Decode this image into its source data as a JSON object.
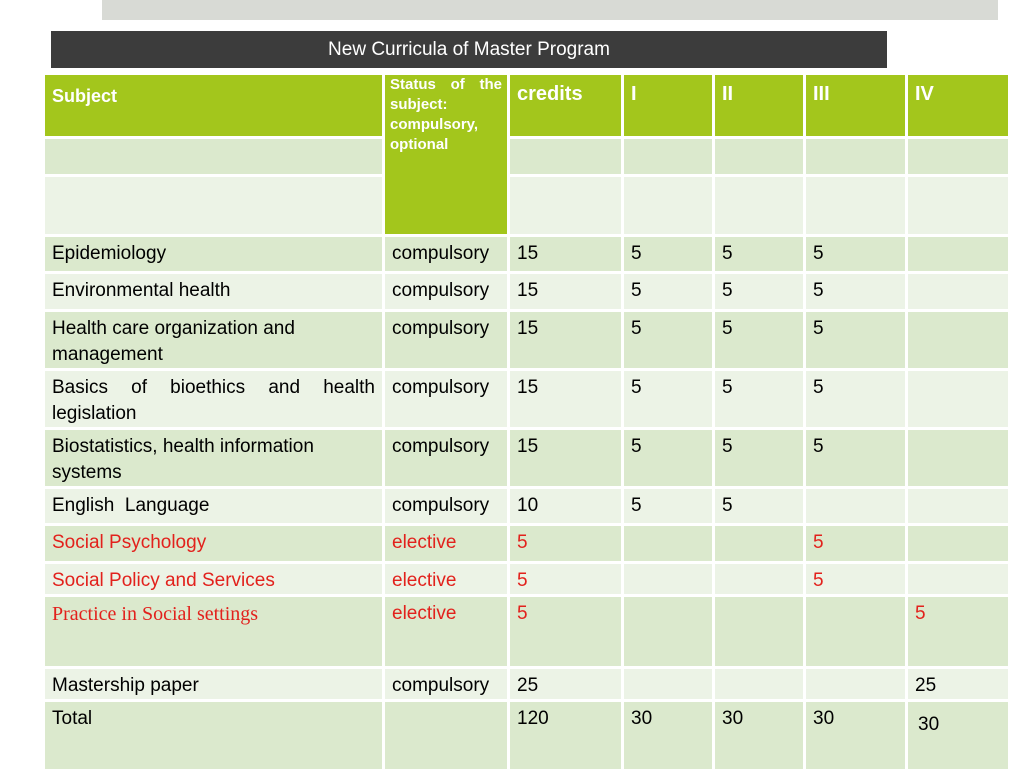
{
  "title": "New Curricula of Master Program",
  "columns": {
    "subject": "Subject",
    "status": "Status of the subject: compulsory, optional",
    "credits": "credits",
    "sem1": "I",
    "sem2": "II",
    "sem3": "III",
    "sem4": "IV"
  },
  "rows": [
    {
      "subject": "Epidemiology",
      "status": "compulsory",
      "credits": "15",
      "s1": "5",
      "s2": "5",
      "s3": "5",
      "s4": ""
    },
    {
      "subject": "Environmental health",
      "status": "compulsory",
      "credits": "15",
      "s1": "5",
      "s2": "5",
      "s3": "5",
      "s4": ""
    },
    {
      "subject": "Health care organization and management",
      "status": "compulsory",
      "credits": "15",
      "s1": "5",
      "s2": "5",
      "s3": "5",
      "s4": ""
    },
    {
      "subject": "Basics of bioethics and health legislation",
      "status": "compulsory",
      "credits": "15",
      "s1": "5",
      "s2": "5",
      "s3": "5",
      "s4": ""
    },
    {
      "subject": "Biostatistics, health information systems",
      "status": "compulsory",
      "credits": "15",
      "s1": "5",
      "s2": "5",
      "s3": "5",
      "s4": ""
    },
    {
      "subject": "English  Language",
      "status": "compulsory",
      "credits": "10",
      "s1": "5",
      "s2": "5",
      "s3": "",
      "s4": ""
    },
    {
      "subject": "Social Psychology",
      "status": "elective",
      "credits": "5",
      "s1": "",
      "s2": "",
      "s3": "5",
      "s4": ""
    },
    {
      "subject": "Social Policy and Services",
      "status": "elective",
      "credits": "5",
      "s1": "",
      "s2": "",
      "s3": "5",
      "s4": ""
    },
    {
      "subject": "Practice in Social settings",
      "status": "elective",
      "credits": "5",
      "s1": "",
      "s2": "",
      "s3": "",
      "s4": "5"
    },
    {
      "subject": "Mastership paper",
      "status": "compulsory",
      "credits": "25",
      "s1": "",
      "s2": "",
      "s3": "",
      "s4": "25"
    },
    {
      "subject": "Total",
      "status": "",
      "credits": "120",
      "s1": "30",
      "s2": "30",
      "s3": "30",
      "s4": "30"
    }
  ],
  "colors": {
    "header_green": "#a3c61c",
    "row_dark": "#dbe9cd",
    "row_light": "#ecf3e6",
    "elective_red": "#e2211c",
    "title_bar": "#3c3c3c"
  }
}
